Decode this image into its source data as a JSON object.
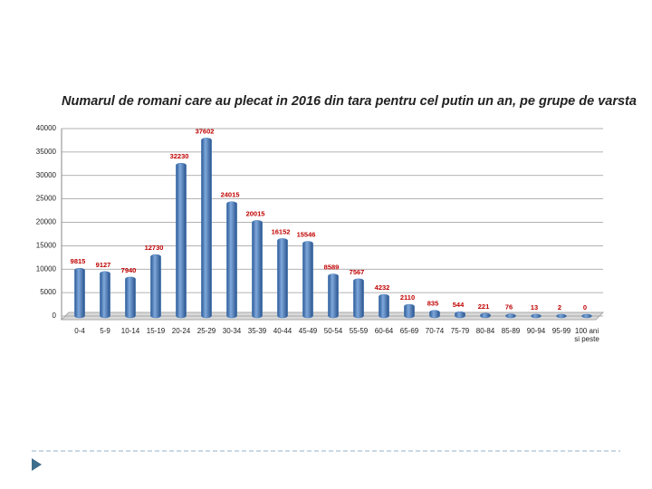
{
  "chart_data": {
    "type": "bar",
    "title": "Numarul de romani care au plecat in 2016 din tara pentru cel putin un an, pe grupe de varsta",
    "categories": [
      "0-4",
      "5-9",
      "10-14",
      "15-19",
      "20-24",
      "25-29",
      "30-34",
      "35-39",
      "40-44",
      "45-49",
      "50-54",
      "55-59",
      "60-64",
      "65-69",
      "70-74",
      "75-79",
      "80-84",
      "85-89",
      "90-94",
      "95-99",
      "100 ani si peste"
    ],
    "values": [
      9815,
      9127,
      7940,
      12730,
      32230,
      37602,
      24015,
      20015,
      16152,
      15546,
      8589,
      7567,
      4232,
      2110,
      835,
      544,
      221,
      76,
      13,
      2,
      0
    ],
    "color": "#4a7ebb",
    "label_color": "#c00000",
    "ylim": [
      0,
      40000
    ],
    "yticks": [
      0,
      5000,
      10000,
      15000,
      20000,
      25000,
      30000,
      35000,
      40000
    ],
    "grid": true
  }
}
